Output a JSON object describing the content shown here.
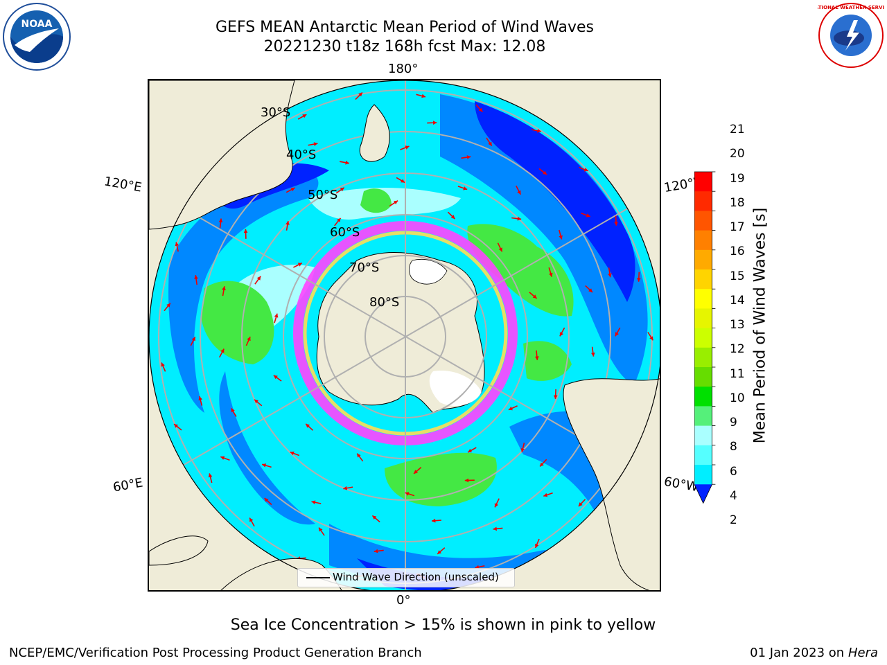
{
  "header": {
    "title_line1": "GEFS MEAN Antarctic Mean Period of Wind Waves",
    "title_line2": "20221230 t18z 168h fcst   Max: 12.08"
  },
  "map": {
    "longitude_labels": {
      "top": "180°",
      "bottom": "0°",
      "left_upper": "120°E",
      "left_lower": "60°E",
      "right_upper": "120°W",
      "right_lower": "60°W"
    },
    "latitude_labels": [
      "30°S",
      "40°S",
      "50°S",
      "60°S",
      "70°S",
      "80°S"
    ],
    "legend_label": "Wind Wave Direction (unscaled)"
  },
  "colorbar": {
    "title": "Mean Period of Wind Waves [s]",
    "ticks": [
      "21",
      "20",
      "19",
      "18",
      "17",
      "16",
      "15",
      "14",
      "13",
      "12",
      "11",
      "10",
      "9",
      "8",
      "6",
      "4",
      "2"
    ],
    "colors": [
      "#ff0000",
      "#ff2a00",
      "#ff5500",
      "#ff8000",
      "#ffaa00",
      "#ffd400",
      "#ffff00",
      "#e6f500",
      "#ccff00",
      "#99ee00",
      "#66dd00",
      "#00e000",
      "#55f07a",
      "#aaffff",
      "#55ffff",
      "#00eeff",
      "#00ccff",
      "#0088ff",
      "#0022ff"
    ]
  },
  "colors": {
    "land": "#efecd8",
    "ocean_deep_blue": "#0022ff",
    "ocean_blue": "#0088ff",
    "ocean_cyan": "#00eeff",
    "ocean_light": "#aaffff",
    "green": "#44e844",
    "sea_ice_pink": "#ff44ff",
    "arrows": "#ee0000",
    "grid": "#b0b0b0"
  },
  "note": "Sea Ice Concentration > 15% is shown in pink to yellow",
  "footer": {
    "left": "NCEP/EMC/Verification Post Processing Product Generation Branch",
    "right_date": "01 Jan 2023 on ",
    "right_machine": "Hera"
  },
  "logos": {
    "noaa_text": "NOAA",
    "nws_text": "NATIONAL WEATHER SERVICE"
  }
}
